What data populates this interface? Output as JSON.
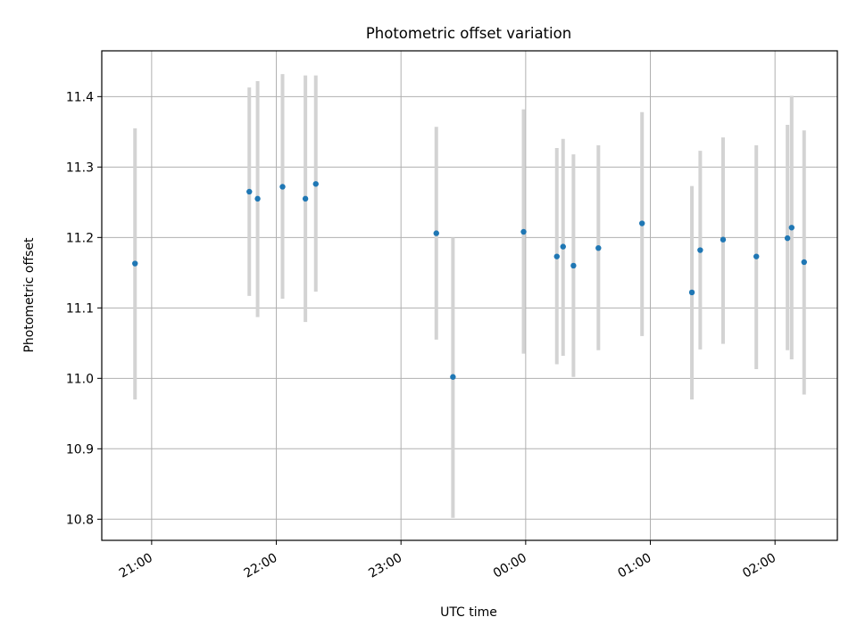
{
  "chart_data": {
    "type": "scatter",
    "title": "Photometric offset variation",
    "xlabel": "UTC time",
    "ylabel": "Photometric offset",
    "x_axis": {
      "type": "time",
      "range": [
        "20:36",
        "02:30"
      ],
      "ticks": [
        "21:00",
        "22:00",
        "23:00",
        "00:00",
        "01:00",
        "02:00"
      ]
    },
    "y_axis": {
      "range": [
        10.77,
        11.465
      ],
      "ticks": [
        "10.8",
        "10.9",
        "11.0",
        "11.1",
        "11.2",
        "11.3",
        "11.4"
      ]
    },
    "grid": true,
    "legend": "none",
    "series": [
      {
        "marker_color": "#1f77b4",
        "errorbar_color": "#d3d3d3",
        "points": [
          {
            "t": "20:52",
            "y": 11.163,
            "lo": 10.97,
            "hi": 11.355
          },
          {
            "t": "21:47",
            "y": 11.265,
            "lo": 11.117,
            "hi": 11.413
          },
          {
            "t": "21:51",
            "y": 11.255,
            "lo": 11.087,
            "hi": 11.422
          },
          {
            "t": "22:03",
            "y": 11.272,
            "lo": 11.113,
            "hi": 11.432
          },
          {
            "t": "22:14",
            "y": 11.255,
            "lo": 11.08,
            "hi": 11.43
          },
          {
            "t": "22:19",
            "y": 11.276,
            "lo": 11.123,
            "hi": 11.43
          },
          {
            "t": "23:17",
            "y": 11.206,
            "lo": 11.055,
            "hi": 11.357
          },
          {
            "t": "23:25",
            "y": 11.002,
            "lo": 10.802,
            "hi": 11.2
          },
          {
            "t": "23:59",
            "y": 11.208,
            "lo": 11.035,
            "hi": 11.382
          },
          {
            "t": "00:15",
            "y": 11.173,
            "lo": 11.02,
            "hi": 11.327
          },
          {
            "t": "00:18",
            "y": 11.187,
            "lo": 11.032,
            "hi": 11.34
          },
          {
            "t": "00:23",
            "y": 11.16,
            "lo": 11.002,
            "hi": 11.318
          },
          {
            "t": "00:35",
            "y": 11.185,
            "lo": 11.04,
            "hi": 11.331
          },
          {
            "t": "00:56",
            "y": 11.22,
            "lo": 11.06,
            "hi": 11.378
          },
          {
            "t": "01:20",
            "y": 11.122,
            "lo": 10.97,
            "hi": 11.273
          },
          {
            "t": "01:24",
            "y": 11.182,
            "lo": 11.041,
            "hi": 11.323
          },
          {
            "t": "01:35",
            "y": 11.197,
            "lo": 11.049,
            "hi": 11.342
          },
          {
            "t": "01:51",
            "y": 11.173,
            "lo": 11.013,
            "hi": 11.331
          },
          {
            "t": "02:06",
            "y": 11.199,
            "lo": 11.04,
            "hi": 11.36
          },
          {
            "t": "02:08",
            "y": 11.214,
            "lo": 11.027,
            "hi": 11.401
          },
          {
            "t": "02:14",
            "y": 11.165,
            "lo": 10.977,
            "hi": 11.352
          }
        ]
      }
    ]
  }
}
